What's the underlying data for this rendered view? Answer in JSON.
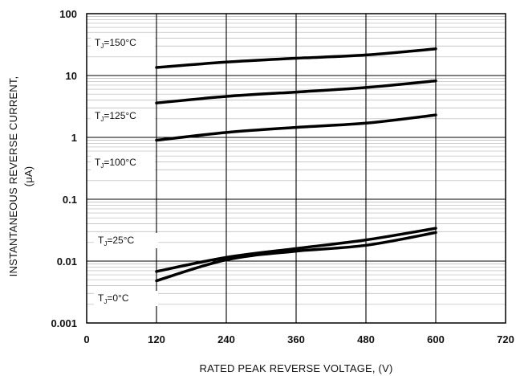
{
  "chart_data": {
    "type": "line",
    "xlabel": "RATED PEAK REVERSE VOLTAGE, (V)",
    "ylabel": [
      "INSTANTANEOUS REVERSE CURRENT,",
      "(μA)"
    ],
    "x_ticks": [
      "0",
      "120",
      "240",
      "360",
      "480",
      "600",
      "720"
    ],
    "y_ticks": [
      "0.001",
      "0.01",
      "0.1",
      "1",
      "10",
      "100"
    ],
    "xlim": [
      0,
      720
    ],
    "ylim": [
      0.001,
      100
    ],
    "y_scale": "log",
    "grid": true,
    "series": [
      {
        "label": {
          "main": "T",
          "sub": "J",
          "rest": "=150°C"
        },
        "x": [
          120,
          240,
          360,
          480,
          600
        ],
        "y": [
          13.5,
          16.5,
          19.0,
          21.5,
          27.0
        ]
      },
      {
        "label": {
          "main": "T",
          "sub": "J",
          "rest": "=125°C"
        },
        "x": [
          120,
          240,
          360,
          480,
          600
        ],
        "y": [
          3.6,
          4.6,
          5.4,
          6.4,
          8.2
        ]
      },
      {
        "label": {
          "main": "T",
          "sub": "J",
          "rest": "=100°C"
        },
        "x": [
          120,
          240,
          360,
          480,
          600
        ],
        "y": [
          0.9,
          1.2,
          1.45,
          1.7,
          2.3
        ]
      },
      {
        "label": {
          "main": "T",
          "sub": "J",
          "rest": "=25°C"
        },
        "x": [
          120,
          240,
          360,
          480,
          600
        ],
        "y": [
          0.0068,
          0.0115,
          0.016,
          0.022,
          0.034
        ]
      },
      {
        "label": {
          "main": "T",
          "sub": "J",
          "rest": "=0°C"
        },
        "x": [
          120,
          240,
          360,
          480,
          600
        ],
        "y": [
          0.0048,
          0.0105,
          0.0145,
          0.018,
          0.029
        ]
      }
    ]
  }
}
